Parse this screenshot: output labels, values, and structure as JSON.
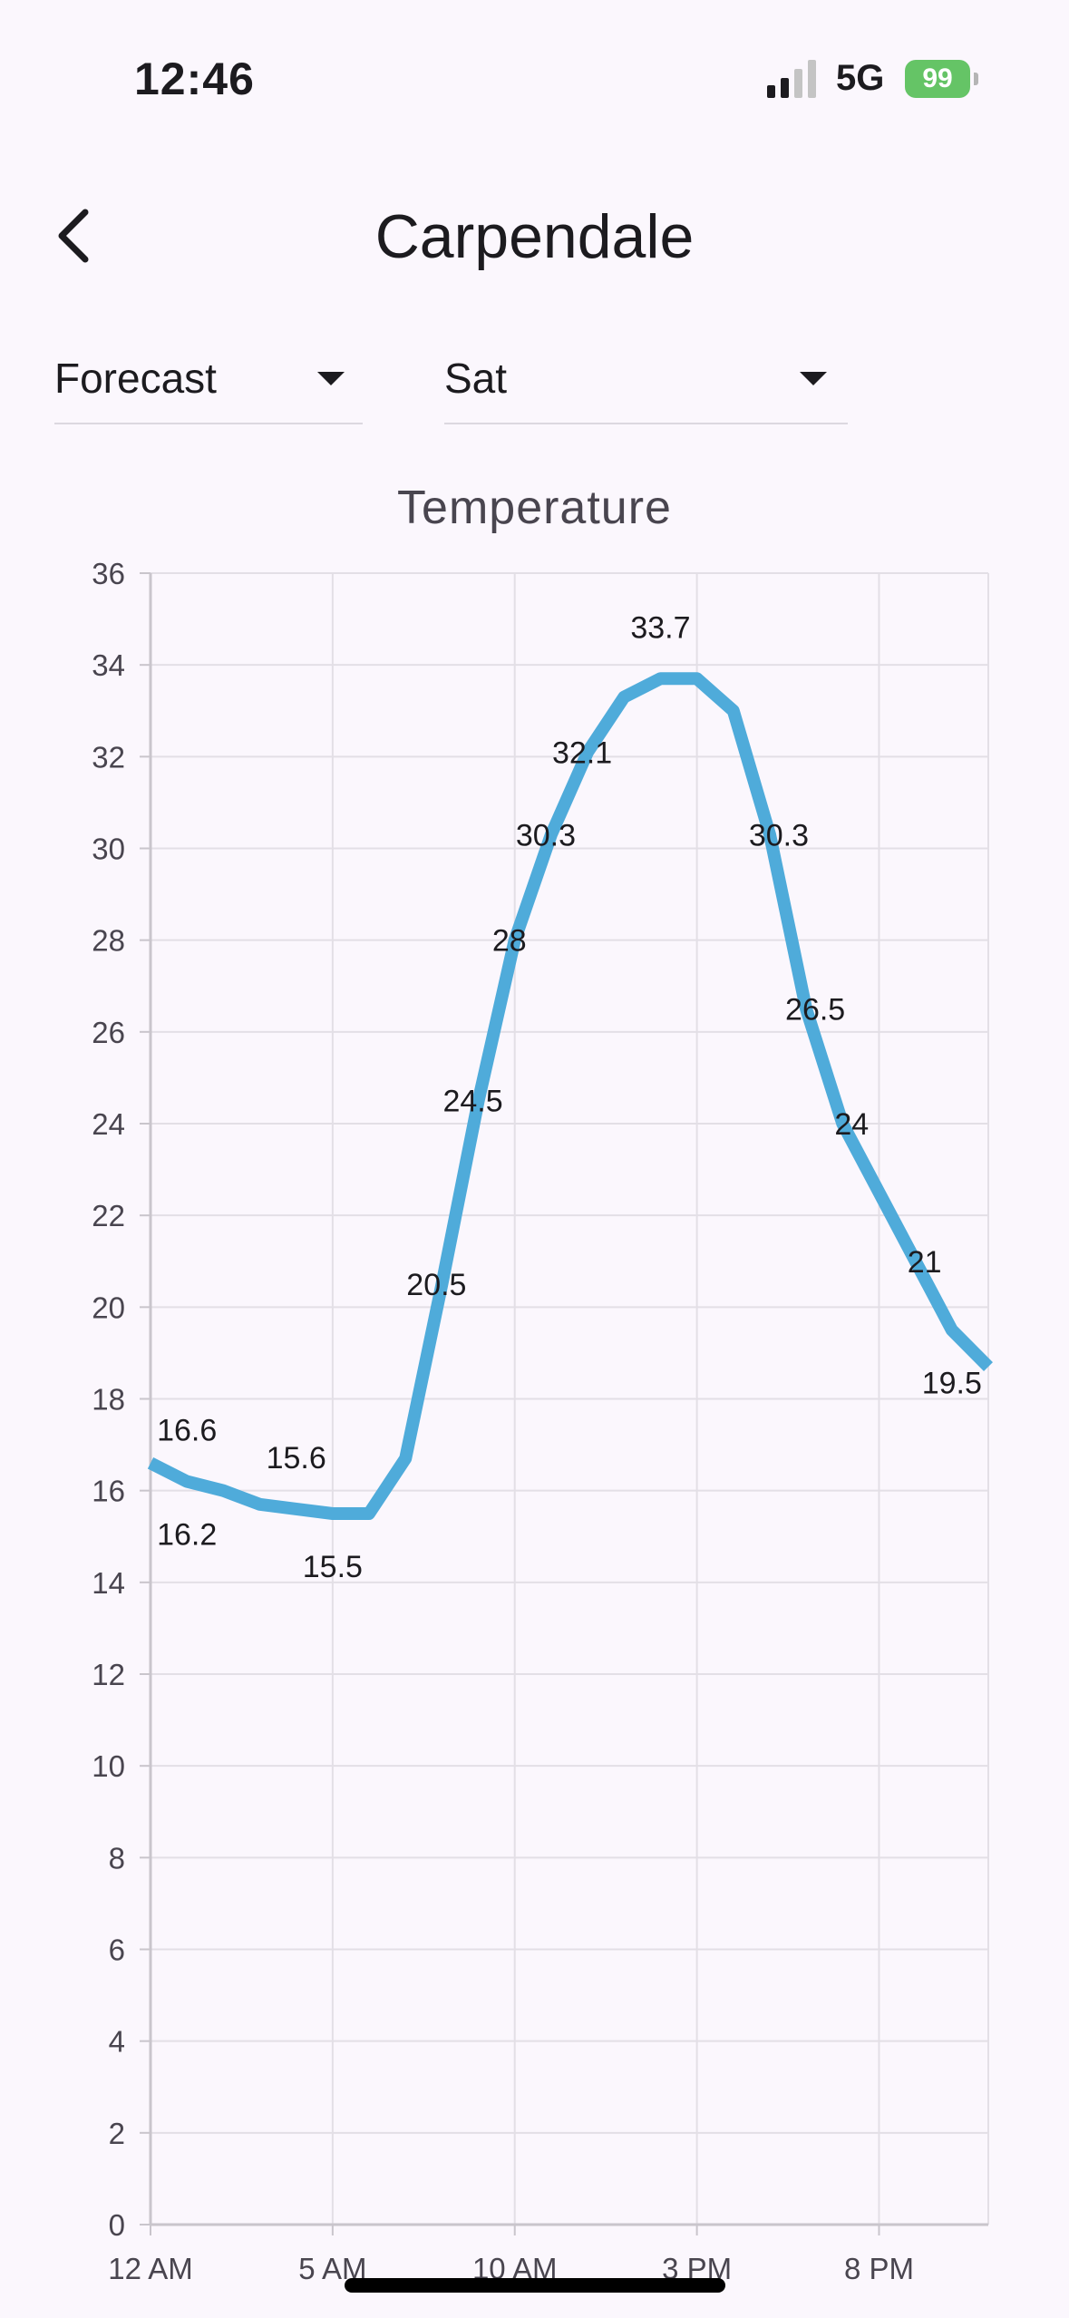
{
  "status_bar": {
    "time": "12:46",
    "network": "5G",
    "battery": "99"
  },
  "app_bar": {
    "title": "Carpendale",
    "back_icon": "chevron-left-icon"
  },
  "filters": {
    "mode": "Forecast",
    "day": "Sat"
  },
  "colors": {
    "line": "#4fabda",
    "battery": "#65c466"
  },
  "chart_data": {
    "type": "line",
    "title": "Temperature",
    "xlabel": "",
    "ylabel": "",
    "x": [
      0,
      1,
      2,
      3,
      4,
      5,
      6,
      7,
      8,
      9,
      10,
      11,
      12,
      13,
      14,
      15,
      16,
      17,
      18,
      19,
      20,
      21,
      22,
      23
    ],
    "x_ticks": [
      {
        "x": 0,
        "label": "12 AM"
      },
      {
        "x": 5,
        "label": "5 AM"
      },
      {
        "x": 10,
        "label": "10 AM"
      },
      {
        "x": 15,
        "label": "3 PM"
      },
      {
        "x": 20,
        "label": "8 PM"
      }
    ],
    "xlim": [
      0,
      23
    ],
    "ylim": [
      0,
      36
    ],
    "y_ticks": [
      0,
      2,
      4,
      6,
      8,
      10,
      12,
      14,
      16,
      18,
      20,
      22,
      24,
      26,
      28,
      30,
      32,
      34,
      36
    ],
    "grid": true,
    "series": [
      {
        "values": [
          16.6,
          16.2,
          16.0,
          15.7,
          15.6,
          15.5,
          15.5,
          16.7,
          20.5,
          24.5,
          28.0,
          30.3,
          32.1,
          33.3,
          33.7,
          33.7,
          33.0,
          30.3,
          26.5,
          24.0,
          22.5,
          21.0,
          19.5,
          18.7
        ]
      }
    ],
    "data_labels": [
      {
        "x": 1,
        "text": "16.6",
        "pos": "above"
      },
      {
        "x": 1,
        "text": "16.2",
        "pos": "below"
      },
      {
        "x": 4,
        "text": "15.6",
        "pos": "above"
      },
      {
        "x": 5,
        "text": "15.5",
        "pos": "below"
      },
      {
        "x": 8,
        "text": "20.5",
        "pos": "left"
      },
      {
        "x": 9,
        "text": "24.5",
        "pos": "left"
      },
      {
        "x": 10,
        "text": "28",
        "pos": "left"
      },
      {
        "x": 11,
        "text": "30.3",
        "pos": "left"
      },
      {
        "x": 12,
        "text": "32.1",
        "pos": "left"
      },
      {
        "x": 14,
        "text": "33.7",
        "pos": "above"
      },
      {
        "x": 17,
        "text": "30.3",
        "pos": "right"
      },
      {
        "x": 18,
        "text": "26.5",
        "pos": "right"
      },
      {
        "x": 19,
        "text": "24",
        "pos": "right"
      },
      {
        "x": 21,
        "text": "21",
        "pos": "right"
      },
      {
        "x": 22,
        "text": "19.5",
        "pos": "below"
      }
    ]
  }
}
